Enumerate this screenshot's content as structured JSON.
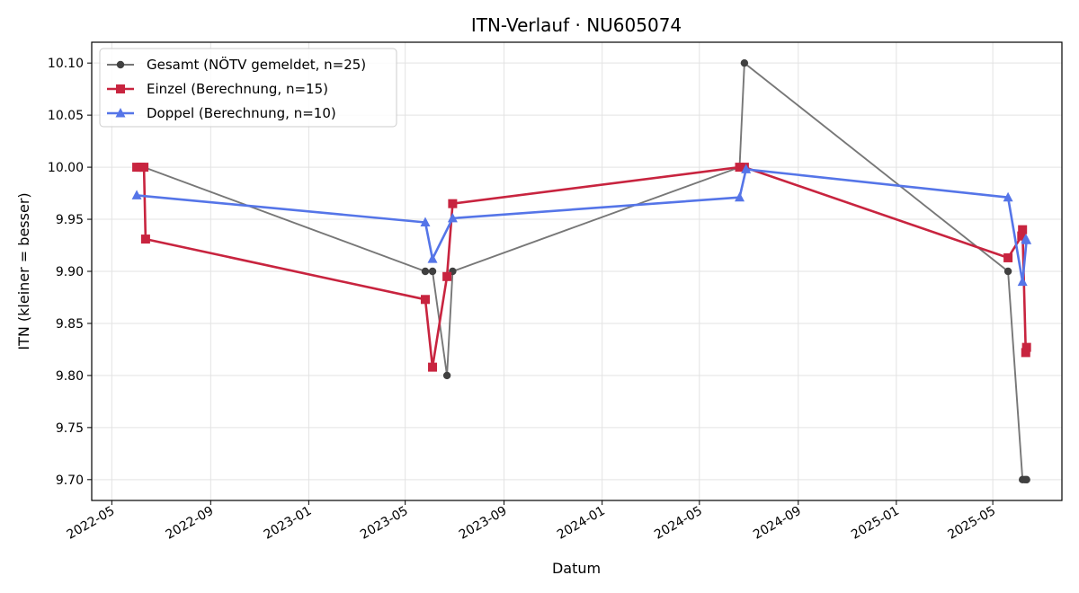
{
  "chart_data": {
    "type": "line",
    "title": "ITN-Verlauf · NU605074",
    "xlabel": "Datum",
    "ylabel": "ITN  (kleiner = besser)",
    "x_axis": "date",
    "xlim": [
      "2022-04-06",
      "2025-07-26"
    ],
    "ylim": [
      9.68,
      10.12
    ],
    "x_ticks": [
      "2022-05-01",
      "2022-09-01",
      "2023-01-01",
      "2023-05-01",
      "2023-09-01",
      "2024-01-01",
      "2024-05-01",
      "2024-09-01",
      "2025-01-01",
      "2025-05-01"
    ],
    "x_tick_labels": [
      "2022-05",
      "2022-09",
      "2023-01",
      "2023-05",
      "2023-09",
      "2024-01",
      "2024-05",
      "2024-09",
      "2025-01",
      "2025-05"
    ],
    "y_ticks": [
      9.7,
      9.75,
      9.8,
      9.85,
      9.9,
      9.95,
      10.0,
      10.05,
      10.1
    ],
    "y_tick_labels": [
      "9.70",
      "9.75",
      "9.80",
      "9.85",
      "9.90",
      "9.95",
      "10.00",
      "10.05",
      "10.10"
    ],
    "grid": true,
    "legend_position": "top-left",
    "series": [
      {
        "name": "Gesamt (NÖTV gemeldet, n=25)",
        "color": "#555555",
        "marker": "circle",
        "points": [
          {
            "x": "2022-06-01",
            "y": 10.0
          },
          {
            "x": "2022-06-06",
            "y": 10.0
          },
          {
            "x": "2022-06-10",
            "y": 10.0
          },
          {
            "x": "2023-05-26",
            "y": 9.9
          },
          {
            "x": "2023-06-04",
            "y": 9.9
          },
          {
            "x": "2023-06-22",
            "y": 9.8
          },
          {
            "x": "2023-06-29",
            "y": 9.9
          },
          {
            "x": "2024-06-20",
            "y": 10.0
          },
          {
            "x": "2024-06-26",
            "y": 10.1
          },
          {
            "x": "2025-05-20",
            "y": 9.9
          },
          {
            "x": "2025-06-07",
            "y": 9.7
          },
          {
            "x": "2025-06-10",
            "y": 9.7
          },
          {
            "x": "2025-06-12",
            "y": 9.7
          }
        ]
      },
      {
        "name": "Einzel (Berechnung, n=15)",
        "color": "#c8243f",
        "marker": "square",
        "points": [
          {
            "x": "2022-06-01",
            "y": 10.0
          },
          {
            "x": "2022-06-06",
            "y": 10.0
          },
          {
            "x": "2022-06-10",
            "y": 10.0
          },
          {
            "x": "2022-06-12",
            "y": 9.931
          },
          {
            "x": "2023-05-26",
            "y": 9.873
          },
          {
            "x": "2023-06-04",
            "y": 9.808
          },
          {
            "x": "2023-06-22",
            "y": 9.895
          },
          {
            "x": "2023-06-29",
            "y": 9.965
          },
          {
            "x": "2024-06-20",
            "y": 10.0
          },
          {
            "x": "2024-06-26",
            "y": 10.0
          },
          {
            "x": "2025-05-20",
            "y": 9.913
          },
          {
            "x": "2025-06-06",
            "y": 9.934
          },
          {
            "x": "2025-06-07",
            "y": 9.94
          },
          {
            "x": "2025-06-11",
            "y": 9.822
          },
          {
            "x": "2025-06-12",
            "y": 9.827
          }
        ]
      },
      {
        "name": "Doppel (Berechnung, n=10)",
        "color": "#5575e8",
        "marker": "triangle",
        "points": [
          {
            "x": "2022-06-01",
            "y": 9.973
          },
          {
            "x": "2023-05-26",
            "y": 9.947
          },
          {
            "x": "2023-06-04",
            "y": 9.912
          },
          {
            "x": "2023-06-29",
            "y": 9.951
          },
          {
            "x": "2024-06-20",
            "y": 9.971
          },
          {
            "x": "2024-06-28",
            "y": 9.998
          },
          {
            "x": "2025-05-20",
            "y": 9.971
          },
          {
            "x": "2025-06-07",
            "y": 9.89
          },
          {
            "x": "2025-06-12",
            "y": 9.93
          },
          {
            "x": "2025-06-11",
            "y": 9.931
          }
        ]
      }
    ]
  }
}
